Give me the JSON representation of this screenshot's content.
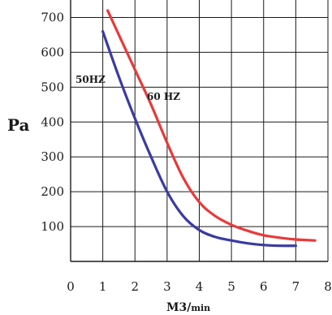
{
  "chart_data": {
    "type": "line",
    "title": "",
    "ylabel": "Pa",
    "xlabel_main": "M3/",
    "xlabel_unit": "min",
    "xlim": [
      0,
      8
    ],
    "ylim": [
      0,
      750
    ],
    "x_ticks": [
      0,
      1,
      2,
      3,
      4,
      5,
      6,
      7,
      8
    ],
    "y_ticks": [
      100,
      200,
      300,
      400,
      500,
      600,
      700
    ],
    "grid": true,
    "series": [
      {
        "name": "50HZ",
        "color": "#3b3ba3",
        "x": [
          1.0,
          1.5,
          2.0,
          2.5,
          3.0,
          3.5,
          4.0,
          4.5,
          5.0,
          5.5,
          6.0,
          6.5,
          7.0
        ],
        "y": [
          660,
          530,
          410,
          300,
          200,
          130,
          90,
          70,
          60,
          52,
          47,
          45,
          45
        ]
      },
      {
        "name": "60 HZ",
        "color": "#e83a3a",
        "x": [
          1.15,
          1.5,
          2.0,
          2.5,
          3.0,
          3.5,
          4.0,
          4.5,
          5.0,
          5.5,
          6.0,
          6.5,
          7.0,
          7.6
        ],
        "y": [
          720,
          650,
          550,
          450,
          340,
          240,
          170,
          130,
          105,
          88,
          75,
          68,
          63,
          60
        ]
      }
    ]
  }
}
